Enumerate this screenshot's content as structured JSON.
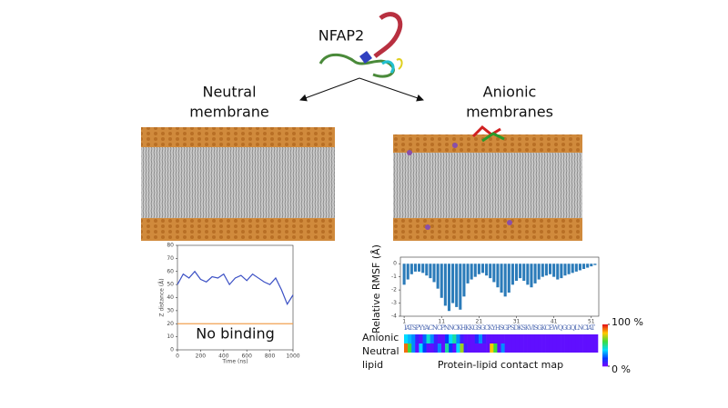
{
  "title": "NFAP2",
  "left_label": [
    "Neutral",
    "membrane"
  ],
  "right_label": [
    "Anionic",
    "membranes"
  ],
  "chart_data": [
    {
      "type": "line",
      "xlabel": "Time (ns)",
      "ylabel": "Z distance (Å)",
      "annotation": "No binding",
      "x": [
        0,
        50,
        100,
        150,
        200,
        250,
        300,
        350,
        400,
        450,
        500,
        550,
        600,
        650,
        700,
        750,
        800,
        850,
        900,
        950,
        1000
      ],
      "series": [
        {
          "color": "#3a4fc4",
          "values": [
            50,
            58,
            55,
            60,
            54,
            52,
            56,
            55,
            58,
            50,
            55,
            57,
            53,
            58,
            55,
            52,
            50,
            55,
            46,
            35,
            42
          ]
        },
        {
          "color": "#f0a050",
          "values": [
            20,
            20,
            20,
            20,
            20,
            20,
            20,
            20,
            20,
            20,
            20,
            20,
            20,
            20,
            20,
            20,
            20,
            20,
            20,
            20,
            20
          ]
        }
      ],
      "xlim": [
        0,
        1000
      ],
      "xticks": [
        0,
        200,
        400,
        600,
        800,
        1000
      ],
      "ylim": [
        0,
        80
      ],
      "yticks": [
        0,
        10,
        20,
        30,
        40,
        50,
        60,
        70,
        80
      ]
    },
    {
      "type": "bar",
      "ylabel": "Relative RMSF (Å)",
      "color": "#2b7bb9",
      "sequence": "IATSPYYACNCPNNCKHKKGSGCKYHSGPSDKSKVISGKCEWQGGQLNCIAT",
      "x": [
        1,
        2,
        3,
        4,
        5,
        6,
        7,
        8,
        9,
        10,
        11,
        12,
        13,
        14,
        15,
        16,
        17,
        18,
        19,
        20,
        21,
        22,
        23,
        24,
        25,
        26,
        27,
        28,
        29,
        30,
        31,
        32,
        33,
        34,
        35,
        36,
        37,
        38,
        39,
        40,
        41,
        42,
        43,
        44,
        45,
        46,
        47,
        48,
        49,
        50,
        51,
        52
      ],
      "values": [
        -1.6,
        -1.2,
        -0.8,
        -0.6,
        -0.6,
        -0.7,
        -0.9,
        -1.1,
        -1.4,
        -1.9,
        -2.6,
        -3.2,
        -3.6,
        -3.0,
        -3.3,
        -3.5,
        -2.5,
        -1.5,
        -1.2,
        -1.0,
        -0.8,
        -0.7,
        -0.9,
        -1.1,
        -1.4,
        -1.8,
        -2.2,
        -2.5,
        -2.2,
        -1.6,
        -1.3,
        -1.1,
        -1.3,
        -1.6,
        -1.8,
        -1.5,
        -1.2,
        -1.0,
        -0.9,
        -0.8,
        -1.0,
        -1.2,
        -1.1,
        -0.9,
        -0.8,
        -0.7,
        -0.6,
        -0.5,
        -0.4,
        -0.3,
        -0.2,
        -0.1
      ],
      "xlim": [
        0,
        53
      ],
      "xticks": [
        1,
        11,
        21,
        31,
        41,
        51
      ],
      "ylim": [
        -4,
        0.5
      ],
      "yticks": [
        0,
        -1,
        -2,
        -3,
        -4
      ]
    },
    {
      "type": "heatmap",
      "title": "Protein-lipid contact map",
      "rows": [
        "Anionic",
        "Neutral"
      ],
      "extra_label": "lipid",
      "values": [
        [
          40,
          35,
          30,
          10,
          5,
          25,
          45,
          30,
          10,
          5,
          5,
          20,
          40,
          50,
          30,
          10,
          5,
          5,
          5,
          15,
          30,
          10,
          5,
          5,
          5,
          5,
          5,
          5,
          5,
          5,
          5,
          5,
          5,
          5,
          5,
          5,
          5,
          5,
          5,
          5,
          5,
          5,
          5,
          5,
          5,
          5,
          5,
          5,
          5,
          5,
          5,
          5
        ],
        [
          90,
          60,
          30,
          5,
          40,
          20,
          5,
          5,
          10,
          30,
          5,
          50,
          20,
          5,
          40,
          70,
          10,
          5,
          5,
          5,
          5,
          5,
          5,
          80,
          60,
          5,
          30,
          5,
          5,
          5,
          5,
          5,
          5,
          5,
          5,
          5,
          5,
          5,
          5,
          5,
          5,
          5,
          5,
          5,
          5,
          5,
          5,
          5,
          5,
          5,
          5,
          5
        ]
      ],
      "clim": [
        0,
        100
      ],
      "cticks": [
        {
          "value": 100,
          "label": "100 %"
        },
        {
          "value": 0,
          "label": "0 %"
        }
      ]
    }
  ]
}
